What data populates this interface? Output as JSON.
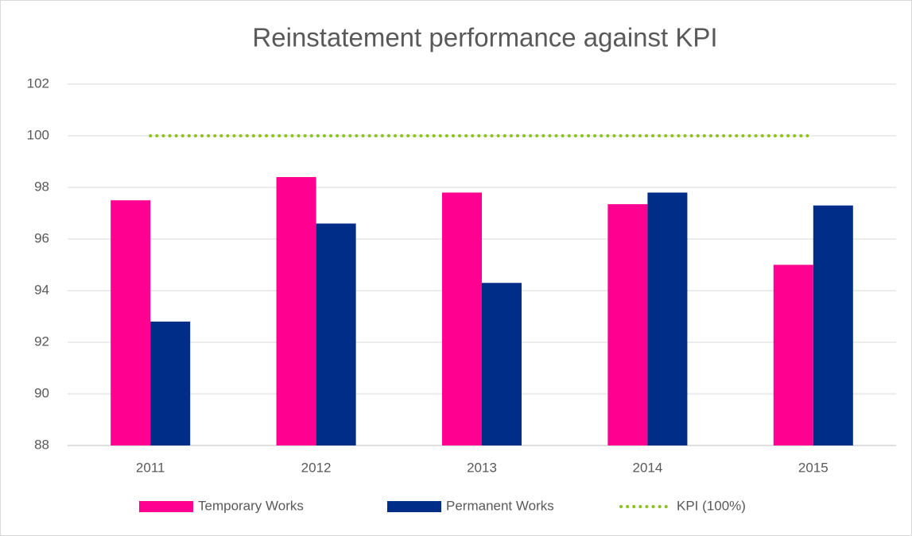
{
  "chart_data": {
    "type": "bar",
    "title": "Reinstatement performance against KPI",
    "categories": [
      "2011",
      "2012",
      "2013",
      "2014",
      "2015"
    ],
    "series": [
      {
        "name": "Temporary Works",
        "color": "#ff0090",
        "values": [
          97.5,
          98.4,
          97.8,
          97.35,
          95.0
        ]
      },
      {
        "name": "Permanent Works",
        "color": "#002d87",
        "values": [
          92.8,
          96.6,
          94.3,
          97.8,
          97.3
        ]
      },
      {
        "name": "KPI (100%)",
        "color": "#8dc21f",
        "type": "line",
        "values": [
          100,
          100,
          100,
          100,
          100
        ]
      }
    ],
    "ylim": [
      88,
      102
    ],
    "yticks": [
      88,
      90,
      92,
      94,
      96,
      98,
      100,
      102
    ],
    "grid": true,
    "legend": "bottom"
  }
}
